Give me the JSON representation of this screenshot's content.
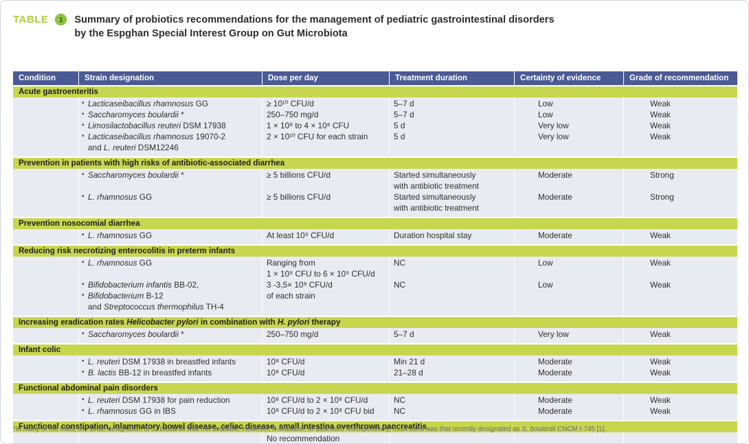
{
  "theme": {
    "header-blue": "#4a5a94",
    "section-green": "#c7d64f",
    "band": "#e9ebf2",
    "accent-green": "#a9cf3a",
    "badge-green": "#8bc53f",
    "text-dark": "#2d2d2d"
  },
  "title": {
    "label": "TABLE",
    "number": "1",
    "line1": "Summary of probiotics recommendations for the management of pediatric gastrointestinal disorders",
    "line2": "by the Espghan Special Interest Group on Gut Microbiota"
  },
  "table": {
    "columns": [
      "Condition",
      "Strain designation",
      "Dose per day",
      "Treatment duration",
      "Certainty of evidence",
      "Grade of recommendation"
    ],
    "sections": [
      {
        "header": [
          {
            "t": "Acute gastroenteritis"
          }
        ],
        "rows": [
          {
            "strain": [
              {
                "b": 1,
                "segs": [
                  {
                    "t": "Lacticaseibacillus rhamnosus",
                    "i": 1
                  },
                  {
                    "t": " GG"
                  }
                ]
              }
            ],
            "dose": [
              "≥ 10¹⁰ CFU/d"
            ],
            "duration": [
              "5–7 d"
            ],
            "certainty": "Low",
            "grade": "Weak"
          },
          {
            "strain": [
              {
                "b": 1,
                "segs": [
                  {
                    "t": "Saccharomyces boulardii",
                    "i": 1
                  },
                  {
                    "t": " *"
                  }
                ]
              }
            ],
            "dose": [
              "250–750 mg/d"
            ],
            "duration": [
              "5–7 d"
            ],
            "certainty": "Low",
            "grade": "Weak"
          },
          {
            "strain": [
              {
                "b": 1,
                "segs": [
                  {
                    "t": "Limosilactobacillus reuteri",
                    "i": 1
                  },
                  {
                    "t": " DSM 17938"
                  }
                ]
              }
            ],
            "dose": [
              "1 × 10⁸ to 4 × 10⁸ CFU"
            ],
            "duration": [
              "5 d"
            ],
            "certainty": "Very low",
            "grade": "Weak"
          },
          {
            "strain": [
              {
                "b": 1,
                "segs": [
                  {
                    "t": "Lacticaseibacillus rhamnosus",
                    "i": 1
                  },
                  {
                    "t": " 19070-2"
                  }
                ]
              },
              {
                "segs": [
                  {
                    "t": "and "
                  },
                  {
                    "t": "L. reuteri",
                    "i": 1
                  },
                  {
                    "t": " DSM12246"
                  }
                ]
              }
            ],
            "dose": [
              "2 × 10¹⁰ CFU for each strain"
            ],
            "duration": [
              "5 d"
            ],
            "certainty": "Very low",
            "grade": "Weak"
          }
        ]
      },
      {
        "header": [
          {
            "t": "Prevention in patients with high risks of antibiotic-associated diarrhea"
          }
        ],
        "rows": [
          {
            "strain": [
              {
                "b": 1,
                "segs": [
                  {
                    "t": "Saccharomyces boulardii",
                    "i": 1
                  },
                  {
                    "t": " *"
                  }
                ]
              }
            ],
            "dose": [
              "≥ 5 billions CFU/d"
            ],
            "duration": [
              "Started simultaneously",
              "with antibiotic treatment"
            ],
            "certainty": "Moderate",
            "grade": "Strong"
          },
          {
            "strain": [
              {
                "b": 1,
                "segs": [
                  {
                    "t": "L. rhamnosus",
                    "i": 1
                  },
                  {
                    "t": " GG"
                  }
                ]
              }
            ],
            "dose": [
              "≥ 5 billions CFU/d"
            ],
            "duration": [
              "Started simultaneously",
              "with antibiotic treatment"
            ],
            "certainty": "Moderate",
            "grade": "Strong"
          }
        ]
      },
      {
        "header": [
          {
            "t": "Prevention nosocomial diarrhea"
          }
        ],
        "rows": [
          {
            "strain": [
              {
                "b": 1,
                "segs": [
                  {
                    "t": "L. rhamnosus",
                    "i": 1
                  },
                  {
                    "t": " GG"
                  }
                ]
              }
            ],
            "dose": [
              "At least 10⁹ CFU/d"
            ],
            "duration": [
              "Duration hospital stay"
            ],
            "certainty": "Moderate",
            "grade": "Weak"
          }
        ]
      },
      {
        "header": [
          {
            "t": "Reducing risk necrotizing enterocolitis in preterm infants"
          }
        ],
        "rows": [
          {
            "strain": [
              {
                "b": 1,
                "segs": [
                  {
                    "t": "L. rhamnosus",
                    "i": 1
                  },
                  {
                    "t": " GG"
                  }
                ]
              }
            ],
            "dose": [
              "Ranging from",
              "1 × 10⁹ CFU to 6 × 10⁹ CFU/d"
            ],
            "duration": [
              "NC"
            ],
            "certainty": "Low",
            "grade": "Weak"
          },
          {
            "strain": [
              {
                "b": 1,
                "segs": [
                  {
                    "t": "Bifidobacterium infantis",
                    "i": 1
                  },
                  {
                    "t": " BB-02,"
                  }
                ]
              },
              {
                "b": 1,
                "segs": [
                  {
                    "t": "Bifidobacterium",
                    "i": 1
                  },
                  {
                    "t": " B-12"
                  }
                ]
              },
              {
                "segs": [
                  {
                    "t": "and "
                  },
                  {
                    "t": "Streptococcus thermophilus",
                    "i": 1
                  },
                  {
                    "t": " TH-4"
                  }
                ]
              }
            ],
            "dose": [
              "3 -3,5× 10⁸ CFU/d",
              "of each strain"
            ],
            "duration": [
              "NC"
            ],
            "certainty": "Low",
            "grade": "Weak"
          }
        ]
      },
      {
        "header": [
          {
            "t": "Increasing eradication rates "
          },
          {
            "t": "Helicobacter pylori",
            "i": 1
          },
          {
            "t": " in combination with "
          },
          {
            "t": "H. pylori",
            "i": 1
          },
          {
            "t": " therapy"
          }
        ],
        "rows": [
          {
            "strain": [
              {
                "b": 1,
                "segs": [
                  {
                    "t": "Saccharomyces boulardii",
                    "i": 1
                  },
                  {
                    "t": " *"
                  }
                ]
              }
            ],
            "dose": [
              "250–750 mg/d"
            ],
            "duration": [
              "5–7 d"
            ],
            "certainty": "Very low",
            "grade": "Weak"
          }
        ]
      },
      {
        "header": [
          {
            "t": "Infant colic"
          }
        ],
        "rows": [
          {
            "strain": [
              {
                "b": 1,
                "segs": [
                  {
                    "t": "L. reuteri",
                    "i": 1
                  },
                  {
                    "t": " DSM 17938 in breastfed infants"
                  }
                ]
              }
            ],
            "dose": [
              "10⁸ CFU/d"
            ],
            "duration": [
              "Min 21 d"
            ],
            "certainty": "Moderate",
            "grade": "Weak"
          },
          {
            "strain": [
              {
                "b": 1,
                "segs": [
                  {
                    "t": "B. lactis",
                    "i": 1
                  },
                  {
                    "t": " BB-12 in breastfed infants"
                  }
                ]
              }
            ],
            "dose": [
              "10⁸ CFU/d"
            ],
            "duration": [
              "21–28 d"
            ],
            "certainty": "Moderate",
            "grade": "Weak"
          }
        ]
      },
      {
        "header": [
          {
            "t": "Functional abdominal pain disorders"
          }
        ],
        "rows": [
          {
            "strain": [
              {
                "b": 1,
                "segs": [
                  {
                    "t": "L. reuteri",
                    "i": 1
                  },
                  {
                    "t": " DSM 17938 for pain reduction"
                  }
                ]
              }
            ],
            "dose": [
              "10⁸ CFU/d to 2 × 10⁸ CFU/d"
            ],
            "duration": [
              "NC"
            ],
            "certainty": "Moderate",
            "grade": "Weak"
          },
          {
            "strain": [
              {
                "b": 1,
                "segs": [
                  {
                    "t": "L. rhamnosus",
                    "i": 1
                  },
                  {
                    "t": " GG in IBS"
                  }
                ]
              }
            ],
            "dose": [
              "10⁸ CFU/d to 2 × 10⁸ CFU bid"
            ],
            "duration": [
              "NC"
            ],
            "certainty": "Moderate",
            "grade": "Weak"
          }
        ]
      },
      {
        "header": [
          {
            "t": "Functional constipation, inlammatory bowel disease, celiac disease, small intestina overthrown pancreatitis"
          }
        ],
        "rows": [
          {
            "strain": [],
            "dose": [
              "No recommendation"
            ],
            "duration": [],
            "certainty": "",
            "grade": ""
          }
        ]
      }
    ]
  },
  "footnote": [
    {
      "t": "*In many of the trials, the strain designation of "
    },
    {
      "t": "S. boulardii",
      "i": 1
    },
    {
      "t": " was not available. However, if available, or assessed retrospectively, most used was that recently designated as "
    },
    {
      "t": "S. boulardii",
      "i": 1
    },
    {
      "t": " CNCM I-745 [1]."
    }
  ]
}
